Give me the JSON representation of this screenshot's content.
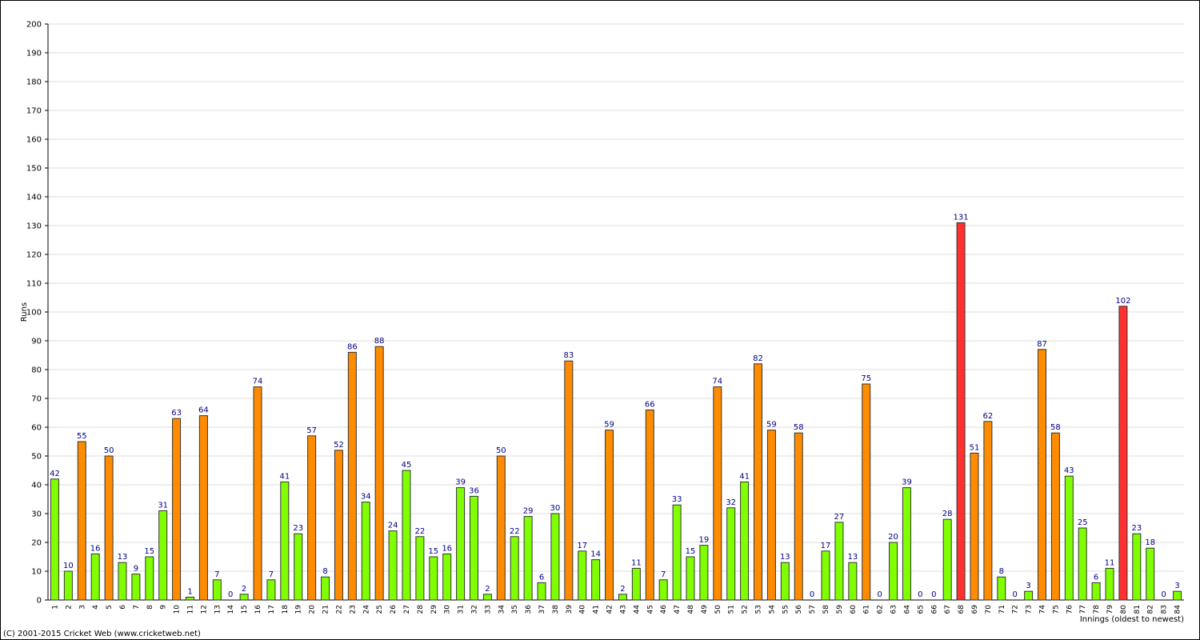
{
  "chart_data": {
    "type": "bar",
    "y_label": "Runs",
    "x_label": "Innings (oldest to newest)",
    "footer": "(C) 2001-2015 Cricket Web (www.cricketweb.net)",
    "categories": [
      "1",
      "2",
      "3",
      "4",
      "5",
      "6",
      "7",
      "8",
      "9",
      "10",
      "11",
      "12",
      "13",
      "14",
      "15",
      "16",
      "17",
      "18",
      "19",
      "20",
      "21",
      "22",
      "23",
      "24",
      "25",
      "26",
      "27",
      "28",
      "29",
      "30",
      "31",
      "32",
      "33",
      "34",
      "35",
      "36",
      "37",
      "38",
      "39",
      "40",
      "41",
      "42",
      "43",
      "44",
      "45",
      "46",
      "47",
      "48",
      "49",
      "50",
      "51",
      "52",
      "53",
      "54",
      "55",
      "56",
      "57",
      "58",
      "59",
      "60",
      "61",
      "62",
      "63",
      "64",
      "65",
      "66",
      "67",
      "68",
      "69",
      "70",
      "71",
      "72",
      "73",
      "74",
      "75",
      "76",
      "77",
      "78",
      "79",
      "80",
      "81",
      "82",
      "83",
      "84"
    ],
    "values": [
      42,
      10,
      55,
      16,
      50,
      13,
      9,
      15,
      31,
      63,
      1,
      64,
      7,
      0,
      2,
      74,
      7,
      41,
      23,
      57,
      8,
      52,
      86,
      34,
      88,
      24,
      45,
      22,
      15,
      16,
      39,
      36,
      2,
      50,
      22,
      29,
      6,
      30,
      83,
      17,
      14,
      59,
      2,
      11,
      66,
      7,
      33,
      15,
      19,
      74,
      32,
      41,
      82,
      59,
      13,
      58,
      0,
      17,
      27,
      13,
      75,
      0,
      20,
      39,
      0,
      0,
      28,
      131,
      51,
      62,
      8,
      0,
      3,
      87,
      58,
      43,
      25,
      6,
      11,
      102,
      23,
      18,
      0,
      3
    ],
    "colors": [
      "#80ff00",
      "#80ff00",
      "#ff8c00",
      "#80ff00",
      "#ff8c00",
      "#80ff00",
      "#80ff00",
      "#80ff00",
      "#80ff00",
      "#ff8c00",
      "#80ff00",
      "#ff8c00",
      "#80ff00",
      "#80ff00",
      "#80ff00",
      "#ff8c00",
      "#80ff00",
      "#80ff00",
      "#80ff00",
      "#ff8c00",
      "#80ff00",
      "#ff8c00",
      "#ff8c00",
      "#80ff00",
      "#ff8c00",
      "#80ff00",
      "#80ff00",
      "#80ff00",
      "#80ff00",
      "#80ff00",
      "#80ff00",
      "#80ff00",
      "#80ff00",
      "#ff8c00",
      "#80ff00",
      "#80ff00",
      "#80ff00",
      "#80ff00",
      "#ff8c00",
      "#80ff00",
      "#80ff00",
      "#ff8c00",
      "#80ff00",
      "#80ff00",
      "#ff8c00",
      "#80ff00",
      "#80ff00",
      "#80ff00",
      "#80ff00",
      "#ff8c00",
      "#80ff00",
      "#80ff00",
      "#ff8c00",
      "#ff8c00",
      "#80ff00",
      "#ff8c00",
      "#80ff00",
      "#80ff00",
      "#80ff00",
      "#80ff00",
      "#ff8c00",
      "#80ff00",
      "#80ff00",
      "#80ff00",
      "#80ff00",
      "#80ff00",
      "#80ff00",
      "#ff3030",
      "#ff8c00",
      "#ff8c00",
      "#80ff00",
      "#80ff00",
      "#80ff00",
      "#ff8c00",
      "#ff8c00",
      "#80ff00",
      "#80ff00",
      "#80ff00",
      "#80ff00",
      "#ff3030",
      "#80ff00",
      "#80ff00",
      "#80ff00",
      "#80ff00"
    ],
    "ylim": [
      0,
      200
    ],
    "yticks": [
      0,
      10,
      20,
      30,
      40,
      50,
      60,
      70,
      80,
      90,
      100,
      110,
      120,
      130,
      140,
      150,
      160,
      170,
      180,
      190,
      200
    ],
    "grid": true
  }
}
